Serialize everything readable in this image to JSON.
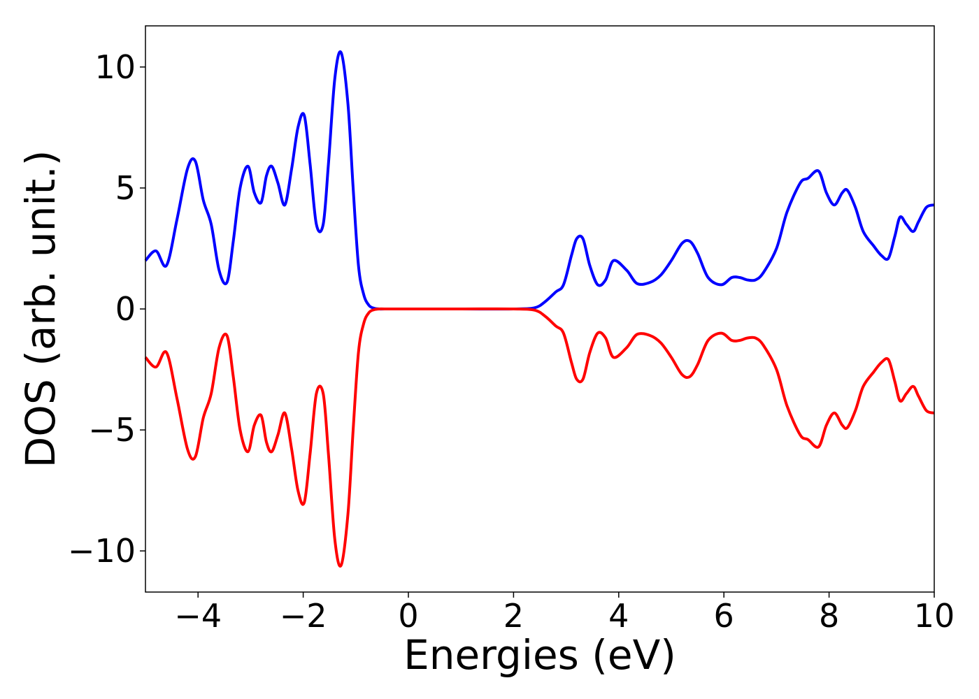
{
  "chart_data": {
    "type": "line",
    "title": "",
    "xlabel": "Energies (eV)",
    "ylabel": "DOS (arb. unit.)",
    "xlim": [
      -5,
      10
    ],
    "ylim": [
      -11.7,
      11.7
    ],
    "xticks": [
      -4,
      -2,
      0,
      2,
      4,
      6,
      8,
      10
    ],
    "xtick_labels": [
      "−4",
      "−2",
      "0",
      "2",
      "4",
      "6",
      "8",
      "10"
    ],
    "yticks": [
      -10,
      -5,
      0,
      5,
      10
    ],
    "ytick_labels": [
      "−10",
      "−5",
      "0",
      "5",
      "10"
    ],
    "grid": false,
    "legend": "none",
    "series": [
      {
        "color": "#0000ff",
        "x": [
          -5.0,
          -4.8,
          -4.6,
          -4.4,
          -4.2,
          -4.05,
          -3.9,
          -3.75,
          -3.6,
          -3.45,
          -3.33,
          -3.2,
          -3.05,
          -2.93,
          -2.8,
          -2.7,
          -2.6,
          -2.48,
          -2.35,
          -2.22,
          -2.1,
          -1.98,
          -1.87,
          -1.75,
          -1.62,
          -1.52,
          -1.4,
          -1.28,
          -1.15,
          -1.05,
          -0.95,
          -0.85,
          -0.75,
          -0.65,
          -0.55,
          -0.45,
          0.0,
          1.0,
          2.0,
          2.4,
          2.6,
          2.8,
          2.95,
          3.1,
          3.2,
          3.32,
          3.45,
          3.6,
          3.75,
          3.9,
          4.15,
          4.35,
          4.6,
          4.8,
          5.0,
          5.2,
          5.35,
          5.5,
          5.7,
          5.95,
          6.15,
          6.3,
          6.45,
          6.6,
          6.75,
          7.0,
          7.2,
          7.45,
          7.6,
          7.8,
          7.95,
          8.1,
          8.25,
          8.35,
          8.5,
          8.65,
          8.85,
          9.0,
          9.13,
          9.25,
          9.35,
          9.47,
          9.6,
          9.7,
          9.85,
          10.0
        ],
        "y": [
          2.0,
          2.4,
          1.8,
          3.7,
          5.8,
          6.1,
          4.5,
          3.5,
          1.6,
          1.1,
          2.8,
          5.0,
          5.9,
          4.8,
          4.4,
          5.5,
          5.9,
          5.2,
          4.3,
          5.8,
          7.5,
          8.0,
          6.0,
          3.5,
          3.5,
          6.0,
          9.5,
          10.6,
          8.5,
          5.0,
          1.8,
          0.6,
          0.15,
          0.03,
          0.0,
          0.0,
          0.0,
          0.0,
          0.0,
          0.05,
          0.3,
          0.7,
          1.0,
          2.2,
          2.9,
          2.9,
          1.8,
          1.0,
          1.2,
          2.0,
          1.6,
          1.05,
          1.1,
          1.4,
          2.0,
          2.7,
          2.8,
          2.3,
          1.3,
          1.0,
          1.3,
          1.3,
          1.2,
          1.2,
          1.5,
          2.5,
          4.0,
          5.2,
          5.4,
          5.7,
          4.8,
          4.3,
          4.8,
          4.9,
          4.2,
          3.2,
          2.6,
          2.2,
          2.1,
          3.0,
          3.8,
          3.5,
          3.2,
          3.6,
          4.2,
          4.3
        ]
      },
      {
        "color": "#ff0000",
        "x": [
          -5.0,
          -4.8,
          -4.6,
          -4.4,
          -4.2,
          -4.05,
          -3.9,
          -3.75,
          -3.6,
          -3.45,
          -3.33,
          -3.2,
          -3.05,
          -2.93,
          -2.8,
          -2.7,
          -2.6,
          -2.48,
          -2.35,
          -2.22,
          -2.1,
          -1.98,
          -1.87,
          -1.75,
          -1.62,
          -1.52,
          -1.4,
          -1.28,
          -1.15,
          -1.05,
          -0.95,
          -0.85,
          -0.75,
          -0.65,
          -0.55,
          -0.45,
          0.0,
          1.0,
          2.0,
          2.4,
          2.6,
          2.8,
          2.95,
          3.1,
          3.2,
          3.32,
          3.45,
          3.6,
          3.75,
          3.9,
          4.15,
          4.35,
          4.6,
          4.8,
          5.0,
          5.2,
          5.35,
          5.5,
          5.7,
          5.95,
          6.15,
          6.3,
          6.45,
          6.6,
          6.75,
          7.0,
          7.2,
          7.45,
          7.6,
          7.8,
          7.95,
          8.1,
          8.25,
          8.35,
          8.5,
          8.65,
          8.85,
          9.0,
          9.13,
          9.25,
          9.35,
          9.47,
          9.6,
          9.7,
          9.85,
          10.0
        ],
        "y": [
          -2.0,
          -2.4,
          -1.8,
          -3.7,
          -5.8,
          -6.1,
          -4.5,
          -3.5,
          -1.6,
          -1.1,
          -2.8,
          -5.0,
          -5.9,
          -4.8,
          -4.4,
          -5.5,
          -5.9,
          -5.2,
          -4.3,
          -5.8,
          -7.5,
          -8.0,
          -6.0,
          -3.5,
          -3.5,
          -6.0,
          -9.5,
          -10.6,
          -8.5,
          -5.0,
          -1.8,
          -0.6,
          -0.15,
          -0.03,
          0.0,
          0.0,
          0.0,
          0.0,
          0.0,
          -0.05,
          -0.3,
          -0.7,
          -1.0,
          -2.2,
          -2.9,
          -2.9,
          -1.8,
          -1.0,
          -1.2,
          -2.0,
          -1.6,
          -1.05,
          -1.1,
          -1.4,
          -2.0,
          -2.7,
          -2.8,
          -2.3,
          -1.3,
          -1.0,
          -1.3,
          -1.3,
          -1.2,
          -1.2,
          -1.5,
          -2.5,
          -4.0,
          -5.2,
          -5.4,
          -5.7,
          -4.8,
          -4.3,
          -4.8,
          -4.9,
          -4.2,
          -3.2,
          -2.6,
          -2.2,
          -2.1,
          -3.0,
          -3.8,
          -3.5,
          -3.2,
          -3.6,
          -4.2,
          -4.3
        ]
      }
    ]
  }
}
